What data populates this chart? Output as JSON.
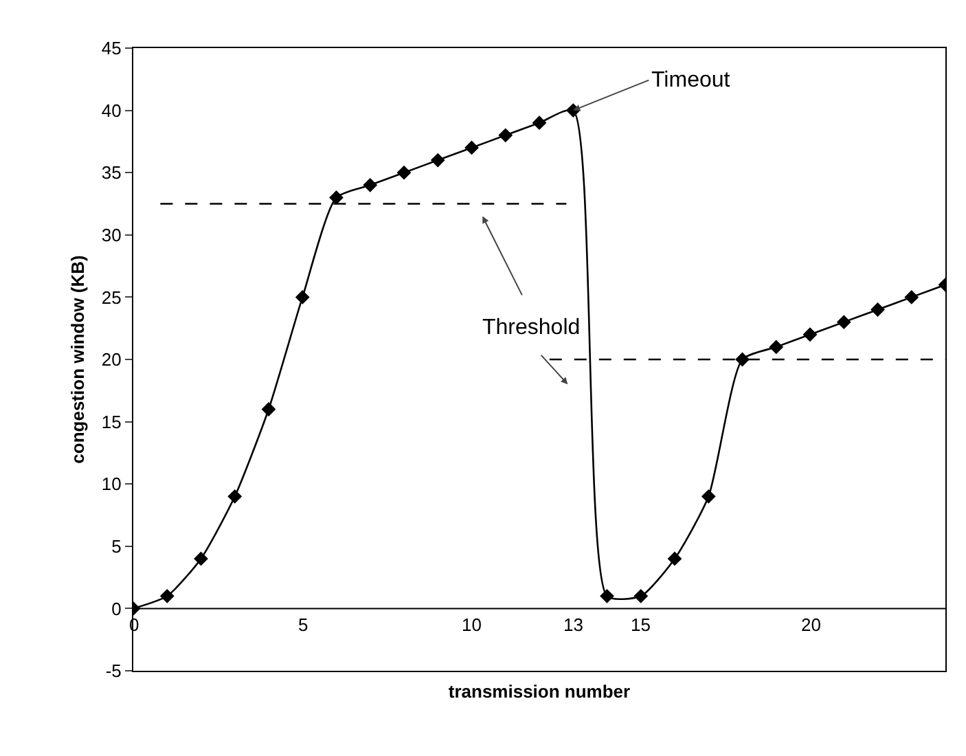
{
  "chart_data": {
    "type": "line",
    "xlabel": "transmission number",
    "ylabel": "congestion window (KB)",
    "xlim": [
      0,
      24
    ],
    "xticks": [
      0,
      5,
      10,
      13,
      15,
      20
    ],
    "ylim": [
      -5,
      45
    ],
    "yticks": [
      -5,
      0,
      5,
      10,
      15,
      20,
      25,
      30,
      35,
      40,
      45
    ],
    "grid": false,
    "marker": "diamond",
    "line_style": "solid",
    "series": [
      {
        "color": "#000000",
        "x": [
          0,
          1,
          2,
          3,
          4,
          5,
          6,
          7,
          8,
          9,
          10,
          11,
          12,
          13,
          14,
          15,
          16,
          17,
          18,
          19,
          20,
          21,
          22,
          23,
          24
        ],
        "values": [
          0,
          1,
          4,
          9,
          16,
          25,
          33,
          34,
          35,
          36,
          37,
          38,
          39,
          40,
          1,
          1,
          4,
          9,
          20,
          21,
          22,
          23,
          24,
          25,
          26
        ]
      },
      {
        "color": "#000000",
        "x": [
          0.8,
          12.8
        ],
        "values": [
          32.5,
          32.5
        ],
        "marker": "none",
        "line_style": "dashed"
      },
      {
        "color": "#000000",
        "x": [
          12.3,
          24
        ],
        "values": [
          20,
          20
        ],
        "marker": "none",
        "line_style": "dashed"
      }
    ],
    "annotations": [
      {
        "text": "Timeout",
        "x": 13,
        "y": 40
      },
      "Threshold"
    ]
  }
}
